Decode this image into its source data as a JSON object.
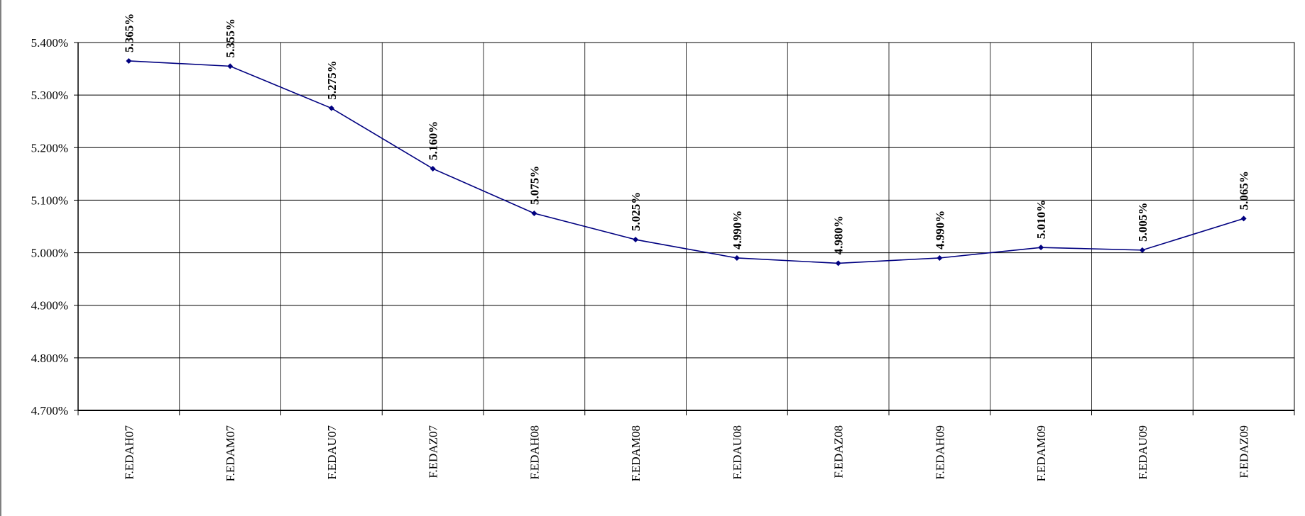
{
  "chart_data": {
    "type": "line",
    "categories": [
      "F.EDAH07",
      "F.EDAM07",
      "F.EDAU07",
      "F.EDAZ07",
      "F.EDAH08",
      "F.EDAM08",
      "F.EDAU08",
      "F.EDAZ08",
      "F.EDAH09",
      "F.EDAM09",
      "F.EDAU09",
      "F.EDAZ09"
    ],
    "series": [
      {
        "values": [
          5.365,
          5.355,
          5.275,
          5.16,
          5.075,
          5.025,
          4.99,
          4.98,
          4.99,
          5.01,
          5.005,
          5.065
        ],
        "data_labels": [
          "5.365%",
          "5.355%",
          "5.275%",
          "5.160%",
          "5.075%",
          "5.025%",
          "4.990%",
          "4.980%",
          "4.990%",
          "5.010%",
          "5.005%",
          "5.065%"
        ],
        "color": "#000080",
        "marker": "diamond"
      }
    ],
    "ylim": [
      4.7,
      5.4
    ],
    "yticks": [
      4.7,
      4.8,
      4.9,
      5.0,
      5.1,
      5.2,
      5.3,
      5.4
    ],
    "ytick_labels": [
      "4.700%",
      "4.800%",
      "4.900%",
      "5.000%",
      "5.100%",
      "5.200%",
      "5.300%",
      "5.400%"
    ],
    "grid": true,
    "legend": "none",
    "title": "",
    "xlabel": "",
    "ylabel": ""
  }
}
